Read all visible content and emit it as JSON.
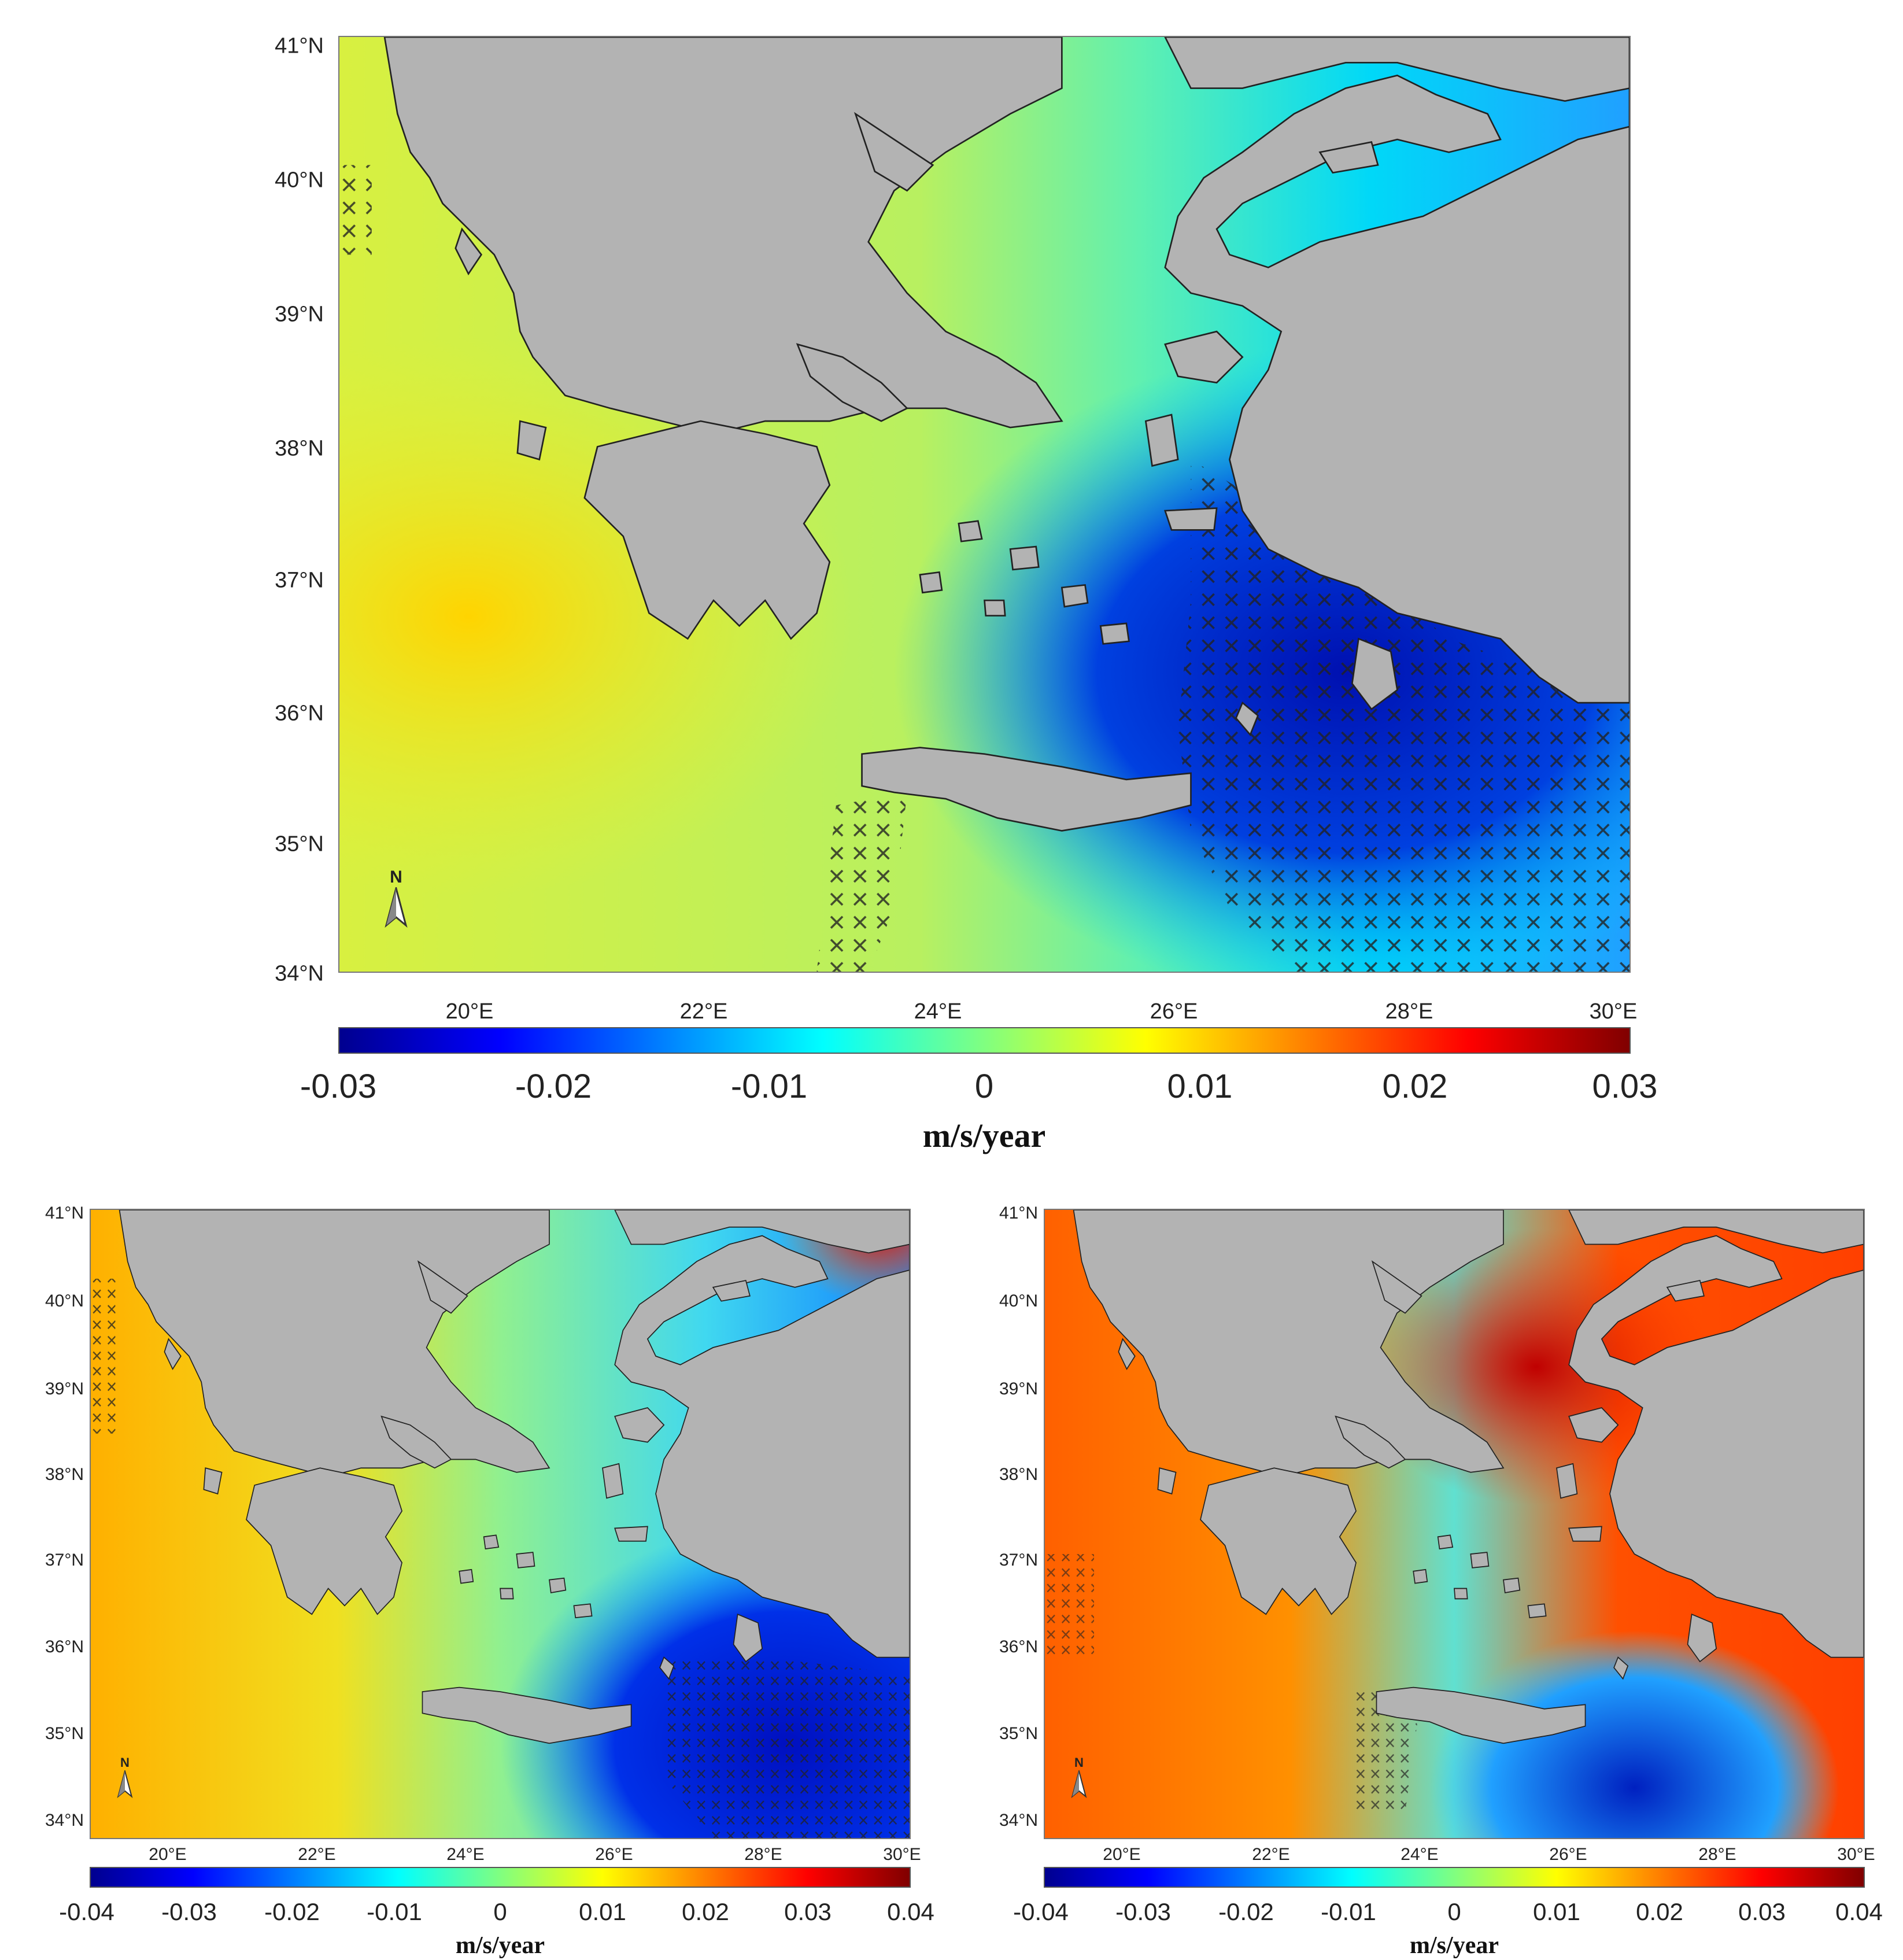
{
  "panels": [
    {
      "id": "top",
      "lat_ticks": [
        "41°N",
        "40°N",
        "39°N",
        "38°N",
        "37°N",
        "36°N",
        "35°N",
        "34°N"
      ],
      "lon_ticks": [
        "20°E",
        "22°E",
        "24°E",
        "26°E",
        "28°E",
        "30°E"
      ],
      "colorbar_ticks": [
        "-0.03",
        "-0.02",
        "-0.01",
        "0",
        "0.01",
        "0.02",
        "0.03"
      ],
      "unit": "m/s/year",
      "north_label": "N"
    },
    {
      "id": "bottom-left",
      "lat_ticks": [
        "41°N",
        "40°N",
        "39°N",
        "38°N",
        "37°N",
        "36°N",
        "35°N",
        "34°N"
      ],
      "lon_ticks": [
        "20°E",
        "22°E",
        "24°E",
        "26°E",
        "28°E",
        "30°E"
      ],
      "colorbar_ticks": [
        "-0.04",
        "-0.03",
        "-0.02",
        "-0.01",
        "0",
        "0.01",
        "0.02",
        "0.03",
        "0.04"
      ],
      "unit": "m/s/year",
      "north_label": "N"
    },
    {
      "id": "bottom-right",
      "lat_ticks": [
        "41°N",
        "40°N",
        "39°N",
        "38°N",
        "37°N",
        "36°N",
        "35°N",
        "34°N"
      ],
      "lon_ticks": [
        "20°E",
        "22°E",
        "24°E",
        "26°E",
        "28°E",
        "30°E"
      ],
      "colorbar_ticks": [
        "-0.04",
        "-0.03",
        "-0.02",
        "-0.01",
        "0",
        "0.01",
        "0.02",
        "0.03",
        "0.04"
      ],
      "unit": "m/s/year",
      "north_label": "N"
    }
  ],
  "colors": {
    "land": "#b3b3b3",
    "colormap": [
      "#00008f",
      "#0000ff",
      "#0080ff",
      "#00ffff",
      "#80ff80",
      "#ffff00",
      "#ff8000",
      "#ff0000",
      "#800000"
    ]
  }
}
